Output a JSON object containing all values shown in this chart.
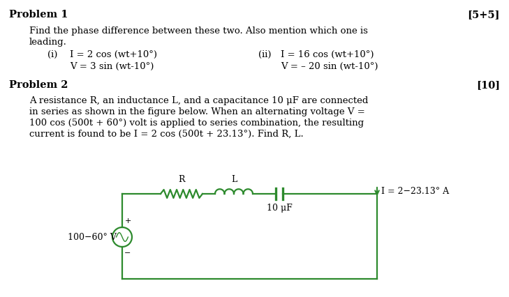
{
  "bg_color": "#ffffff",
  "text_color": "#000000",
  "circuit_color": "#2d8a2d",
  "problem1_title": "Problem 1",
  "problem1_marks": "[5+5]",
  "problem1_desc1": "Find the phase difference between these two. Also mention which one is",
  "problem1_desc2": "leading.",
  "p1_i_label": "(i)",
  "p1_i_eq1": "I = 2 cos (wt+10°)",
  "p1_i_eq2": "V = 3 sin (wt-10°)",
  "p1_ii_label": "(ii)",
  "p1_ii_eq1": "I = 16 cos (wt+10°)",
  "p1_ii_eq2": "V = – 20 sin (wt-10°)",
  "problem2_title": "Problem 2",
  "problem2_marks": "[10]",
  "problem2_desc1": "A resistance R, an inductance L, and a capacitance 10 μF are connected",
  "problem2_desc2": "in series as shown in the figure below. When an alternating voltage V =",
  "problem2_desc3": "100 cos (500t + 60°) volt is applied to series combination, the resulting",
  "problem2_desc4": "current is found to be I = 2 cos (500t + 23.13°). Find R, L.",
  "circuit_R_label": "R",
  "circuit_L_label": "L",
  "circuit_C_label": "10 μF",
  "circuit_V_label": "100−60° V",
  "circuit_I_label": "I = 2−23.13° A",
  "font_family": "DejaVu Serif",
  "title_fontsize": 10.5,
  "body_fontsize": 9.5,
  "eq_fontsize": 9.5,
  "circuit_fontsize": 9
}
